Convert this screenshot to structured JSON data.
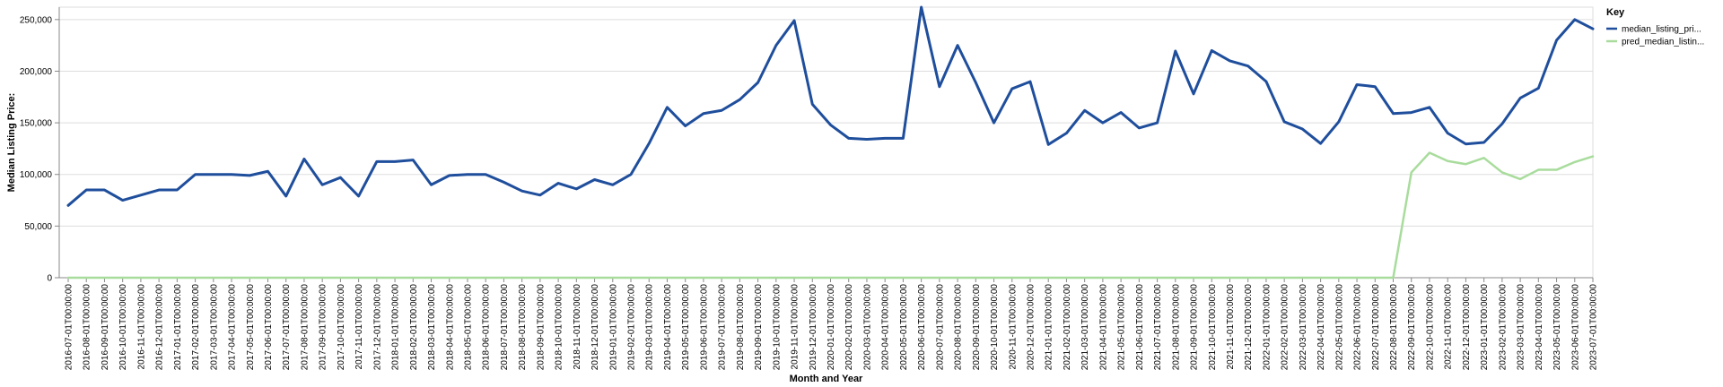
{
  "chart_data": {
    "type": "line",
    "xlabel": "Month and Year",
    "ylabel": "Median Listing Price:",
    "ylim": [
      0,
      262000
    ],
    "yticks": [
      0,
      50000,
      100000,
      150000,
      200000,
      250000
    ],
    "ytick_labels": [
      "0",
      "50,000",
      "100,000",
      "150,000",
      "200,000",
      "250,000"
    ],
    "grid": true,
    "legend": {
      "title": "Key",
      "position": "top-right"
    },
    "x": [
      "2016-07-01T00:00:00",
      "2016-08-01T00:00:00",
      "2016-09-01T00:00:00",
      "2016-10-01T00:00:00",
      "2016-11-01T00:00:00",
      "2016-12-01T00:00:00",
      "2017-01-01T00:00:00",
      "2017-02-01T00:00:00",
      "2017-03-01T00:00:00",
      "2017-04-01T00:00:00",
      "2017-05-01T00:00:00",
      "2017-06-01T00:00:00",
      "2017-07-01T00:00:00",
      "2017-08-01T00:00:00",
      "2017-09-01T00:00:00",
      "2017-10-01T00:00:00",
      "2017-11-01T00:00:00",
      "2017-12-01T00:00:00",
      "2018-01-01T00:00:00",
      "2018-02-01T00:00:00",
      "2018-03-01T00:00:00",
      "2018-04-01T00:00:00",
      "2018-05-01T00:00:00",
      "2018-06-01T00:00:00",
      "2018-07-01T00:00:00",
      "2018-08-01T00:00:00",
      "2018-09-01T00:00:00",
      "2018-10-01T00:00:00",
      "2018-11-01T00:00:00",
      "2018-12-01T00:00:00",
      "2019-01-01T00:00:00",
      "2019-02-01T00:00:00",
      "2019-03-01T00:00:00",
      "2019-04-01T00:00:00",
      "2019-05-01T00:00:00",
      "2019-06-01T00:00:00",
      "2019-07-01T00:00:00",
      "2019-08-01T00:00:00",
      "2019-09-01T00:00:00",
      "2019-10-01T00:00:00",
      "2019-11-01T00:00:00",
      "2019-12-01T00:00:00",
      "2020-01-01T00:00:00",
      "2020-02-01T00:00:00",
      "2020-03-01T00:00:00",
      "2020-04-01T00:00:00",
      "2020-05-01T00:00:00",
      "2020-06-01T00:00:00",
      "2020-07-01T00:00:00",
      "2020-08-01T00:00:00",
      "2020-09-01T00:00:00",
      "2020-10-01T00:00:00",
      "2020-11-01T00:00:00",
      "2020-12-01T00:00:00",
      "2021-01-01T00:00:00",
      "2021-02-01T00:00:00",
      "2021-03-01T00:00:00",
      "2021-04-01T00:00:00",
      "2021-05-01T00:00:00",
      "2021-06-01T00:00:00",
      "2021-07-01T00:00:00",
      "2021-08-01T00:00:00",
      "2021-09-01T00:00:00",
      "2021-10-01T00:00:00",
      "2021-11-01T00:00:00",
      "2021-12-01T00:00:00",
      "2022-01-01T00:00:00",
      "2022-02-01T00:00:00",
      "2022-03-01T00:00:00",
      "2022-04-01T00:00:00",
      "2022-05-01T00:00:00",
      "2022-06-01T00:00:00",
      "2022-07-01T00:00:00",
      "2022-08-01T00:00:00",
      "2022-09-01T00:00:00",
      "2022-10-01T00:00:00",
      "2022-11-01T00:00:00",
      "2022-12-01T00:00:00",
      "2023-01-01T00:00:00",
      "2023-02-01T00:00:00",
      "2023-03-01T00:00:00",
      "2023-04-01T00:00:00",
      "2023-05-01T00:00:00",
      "2023-06-01T00:00:00",
      "2023-07-01T00:00:00"
    ],
    "series": [
      {
        "name": "median_listing_pri...",
        "color": "#1f4e9c",
        "values": [
          70000,
          85000,
          85000,
          75000,
          80000,
          85000,
          85000,
          100000,
          100000,
          100000,
          99000,
          103000,
          79000,
          115000,
          90000,
          97000,
          79000,
          112500,
          112500,
          114000,
          90000,
          99000,
          100000,
          100000,
          92500,
          84000,
          80000,
          91500,
          86000,
          95000,
          90000,
          100000,
          130000,
          165000,
          147000,
          159000,
          162000,
          172500,
          189000,
          225000,
          249000,
          168000,
          148000,
          135000,
          134000,
          135000,
          135000,
          262000,
          185000,
          225000,
          189000,
          150000,
          183000,
          189900,
          129000,
          140000,
          162000,
          150000,
          160000,
          145000,
          150000,
          219500,
          178000,
          220000,
          210000,
          205000,
          190000,
          151000,
          144000,
          130000,
          151000,
          187000,
          185000,
          159000,
          160000,
          165000,
          140000,
          129500,
          131000,
          149000,
          174000,
          183500,
          230000,
          250000,
          241000
        ]
      },
      {
        "name": "pred_median_listin...",
        "color": "#a8dc9c",
        "values": [
          0,
          0,
          0,
          0,
          0,
          0,
          0,
          0,
          0,
          0,
          0,
          0,
          0,
          0,
          0,
          0,
          0,
          0,
          0,
          0,
          0,
          0,
          0,
          0,
          0,
          0,
          0,
          0,
          0,
          0,
          0,
          0,
          0,
          0,
          0,
          0,
          0,
          0,
          0,
          0,
          0,
          0,
          0,
          0,
          0,
          0,
          0,
          0,
          0,
          0,
          0,
          0,
          0,
          0,
          0,
          0,
          0,
          0,
          0,
          0,
          0,
          0,
          0,
          0,
          0,
          0,
          0,
          0,
          0,
          0,
          0,
          0,
          0,
          0,
          102000,
          121000,
          113000,
          110000,
          116000,
          102000,
          95500,
          104500,
          104500,
          112000,
          117500
        ]
      }
    ]
  }
}
